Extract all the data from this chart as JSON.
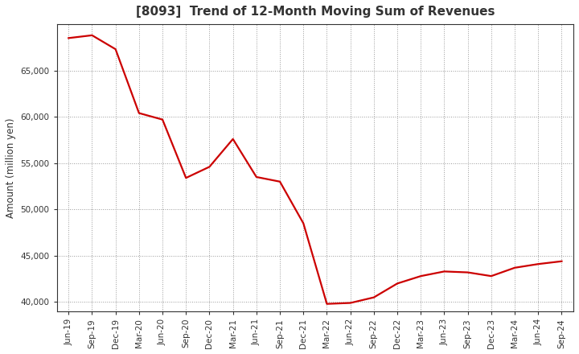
{
  "title": "[8093]  Trend of 12-Month Moving Sum of Revenues",
  "ylabel": "Amount (million yen)",
  "line_color": "#cc0000",
  "background_color": "#ffffff",
  "plot_bg_color": "#ffffff",
  "grid_color": "#999999",
  "ylim": [
    39000,
    70000
  ],
  "yticks": [
    40000,
    45000,
    50000,
    55000,
    60000,
    65000
  ],
  "x_labels": [
    "Jun-19",
    "Sep-19",
    "Dec-19",
    "Mar-20",
    "Jun-20",
    "Sep-20",
    "Dec-20",
    "Mar-21",
    "Jun-21",
    "Sep-21",
    "Dec-21",
    "Mar-22",
    "Jun-22",
    "Sep-22",
    "Dec-22",
    "Mar-23",
    "Jun-23",
    "Sep-23",
    "Dec-23",
    "Mar-24",
    "Jun-24",
    "Sep-24"
  ],
  "values": [
    68500,
    68800,
    67300,
    60400,
    59700,
    53400,
    54600,
    57600,
    53500,
    53000,
    48500,
    39800,
    39900,
    40500,
    42000,
    42800,
    43300,
    43200,
    42800,
    43700,
    44100,
    44400
  ],
  "title_fontsize": 11,
  "tick_fontsize": 7.5,
  "ylabel_fontsize": 8.5
}
